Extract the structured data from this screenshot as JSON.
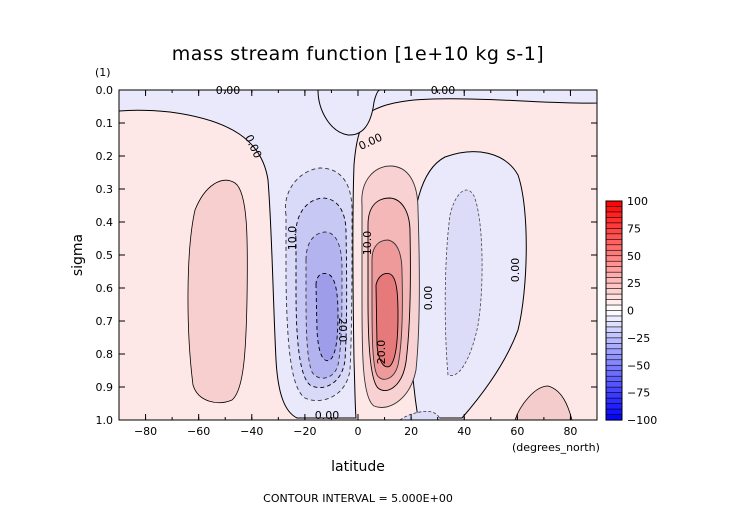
{
  "chart_data": {
    "type": "contour",
    "title": "mass stream function [1e+10 kg s-1]",
    "xlabel": "latitude",
    "ylabel": "sigma",
    "x_units_label": "(degrees_north)",
    "y_units_label": "(1)",
    "xlim": [
      -90,
      90
    ],
    "ylim": [
      1.0,
      0.0
    ],
    "x_ticks": [
      -80,
      -60,
      -40,
      -20,
      0,
      20,
      40,
      60,
      80
    ],
    "x_tick_labels": [
      "−80",
      "−60",
      "−40",
      "−20",
      "0",
      "20",
      "40",
      "60",
      "80"
    ],
    "y_ticks": [
      0.0,
      0.1,
      0.2,
      0.3,
      0.4,
      0.5,
      0.6,
      0.7,
      0.8,
      0.9,
      1.0
    ],
    "y_tick_labels": [
      "0.0",
      "0.1",
      "0.2",
      "0.3",
      "0.4",
      "0.5",
      "0.6",
      "0.7",
      "0.8",
      "0.9",
      "1.0"
    ],
    "contour_interval_text": "CONTOUR INTERVAL = 5.000E+00",
    "contour_labels": [
      "0.00",
      "0.00",
      "0.00",
      "0.00",
      "10.0",
      "10.0",
      "20.0",
      "20.0",
      "0.00",
      "0.00",
      "0.00"
    ],
    "cells": [
      {
        "lat": -12,
        "sigma": 0.72,
        "peak": -22,
        "sign": "negative"
      },
      {
        "lat": 9,
        "sigma": 0.73,
        "peak": 24,
        "sign": "positive"
      },
      {
        "lat": 38,
        "sigma": 0.55,
        "peak": -4,
        "sign": "negative"
      },
      {
        "lat": -52,
        "sigma": 0.6,
        "peak": 4,
        "sign": "positive"
      }
    ],
    "colorbar": {
      "ticks": [
        100,
        75,
        50,
        25,
        0,
        -25,
        -50,
        -75,
        -100
      ],
      "tick_labels": [
        "100",
        "75",
        "50",
        "25",
        "0",
        "−25",
        "−50",
        "−75",
        "−100"
      ],
      "positive_color": "#ff0000",
      "negative_color": "#0000ff",
      "zero_color": "#ffffff"
    },
    "grid": false,
    "legend": "right"
  }
}
